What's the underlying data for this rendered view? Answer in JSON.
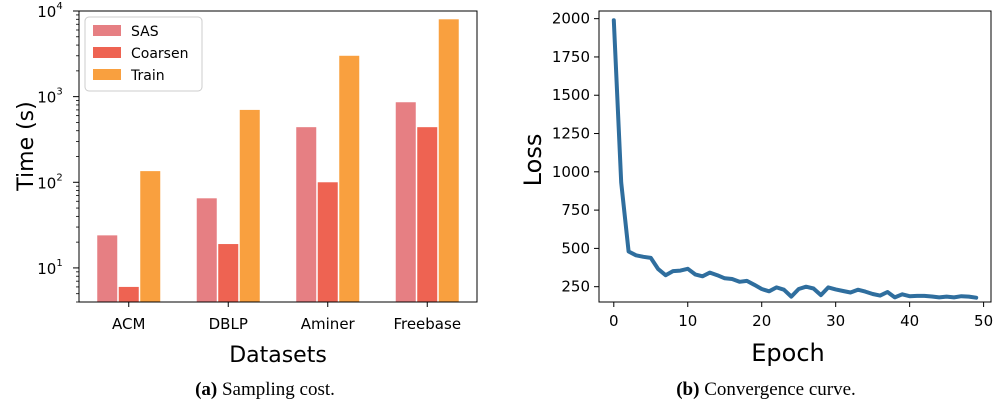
{
  "chart_data": [
    {
      "type": "bar",
      "caption_letter": "a",
      "caption_text": "Sampling cost.",
      "xlabel": "Datasets",
      "ylabel": "Time (s)",
      "yscale": "log",
      "ylim": [
        4,
        10000
      ],
      "y_ticks": [
        {
          "value": 10,
          "base": "10",
          "exp": "1"
        },
        {
          "value": 100,
          "base": "10",
          "exp": "2"
        },
        {
          "value": 1000,
          "base": "10",
          "exp": "3"
        },
        {
          "value": 10000,
          "base": "10",
          "exp": "4"
        }
      ],
      "categories": [
        "ACM",
        "DBLP",
        "Aminer",
        "Freebase"
      ],
      "series": [
        {
          "name": "SAS",
          "color": "#e67f83",
          "values": [
            24,
            65,
            440,
            860
          ]
        },
        {
          "name": "Coarsen",
          "color": "#ee6352",
          "values": [
            6,
            19,
            100,
            440
          ]
        },
        {
          "name": "Train",
          "color": "#f9a03f",
          "values": [
            135,
            700,
            3000,
            8000
          ]
        }
      ],
      "legend_position": "upper-left",
      "grid": false
    },
    {
      "type": "line",
      "caption_letter": "b",
      "caption_text": "Convergence curve.",
      "xlabel": "Epoch",
      "ylabel": "Loss",
      "xlim": [
        -2,
        51
      ],
      "ylim": [
        150,
        2050
      ],
      "x_ticks": [
        0,
        10,
        20,
        30,
        40,
        50
      ],
      "y_ticks": [
        250,
        500,
        750,
        1000,
        1250,
        1500,
        1750,
        2000
      ],
      "line_color": "#2f6e9e",
      "x": [
        0,
        1,
        2,
        3,
        4,
        5,
        6,
        7,
        8,
        9,
        10,
        11,
        12,
        13,
        14,
        15,
        16,
        17,
        18,
        19,
        20,
        21,
        22,
        23,
        24,
        25,
        26,
        27,
        28,
        29,
        30,
        31,
        32,
        33,
        34,
        35,
        36,
        37,
        38,
        39,
        40,
        41,
        42,
        43,
        44,
        45,
        46,
        47,
        48,
        49
      ],
      "y": [
        1990,
        930,
        480,
        455,
        445,
        438,
        365,
        325,
        352,
        355,
        367,
        330,
        318,
        342,
        325,
        305,
        300,
        282,
        288,
        262,
        235,
        220,
        245,
        230,
        185,
        235,
        250,
        238,
        195,
        245,
        232,
        222,
        212,
        230,
        218,
        202,
        192,
        215,
        180,
        200,
        188,
        190,
        190,
        186,
        180,
        185,
        180,
        188,
        185,
        178
      ],
      "grid": false
    }
  ]
}
